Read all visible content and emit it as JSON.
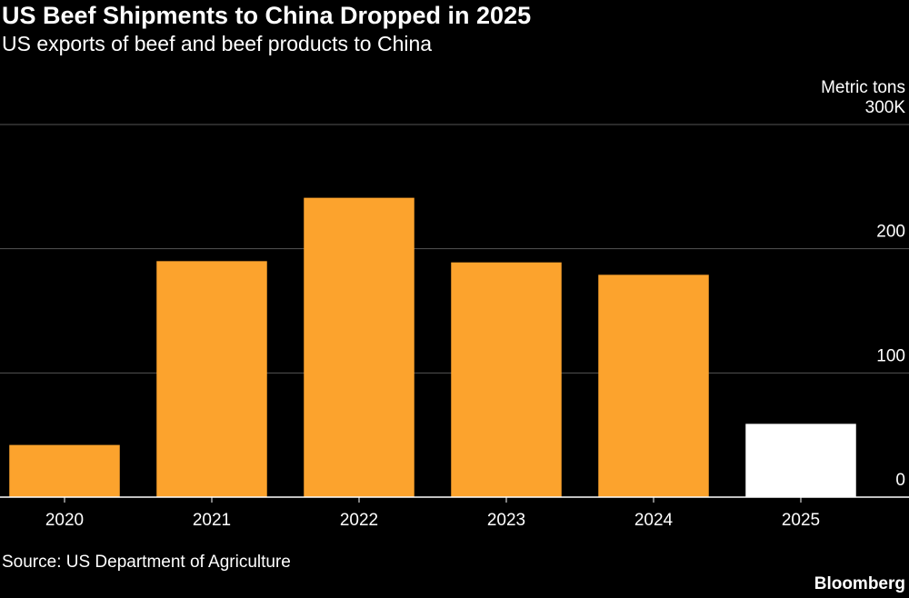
{
  "chart_data": {
    "type": "bar",
    "title": "US Beef Shipments to China Dropped in 2025",
    "subtitle": "US exports of beef and beef products to China",
    "y_axis_label": "Metric tons",
    "categories": [
      "2020",
      "2021",
      "2022",
      "2023",
      "2024",
      "2025"
    ],
    "values": [
      42,
      190,
      241,
      189,
      179,
      59
    ],
    "colors": [
      "#fca32d",
      "#fca32d",
      "#fca32d",
      "#fca32d",
      "#fca32d",
      "#ffffff"
    ],
    "ylim": [
      0,
      300
    ],
    "yticks": [
      0,
      100,
      200,
      {
        "value": 300,
        "label": "300K"
      }
    ],
    "grid": true,
    "source": "Source: US Department of Agriculture",
    "brand": "Bloomberg"
  }
}
